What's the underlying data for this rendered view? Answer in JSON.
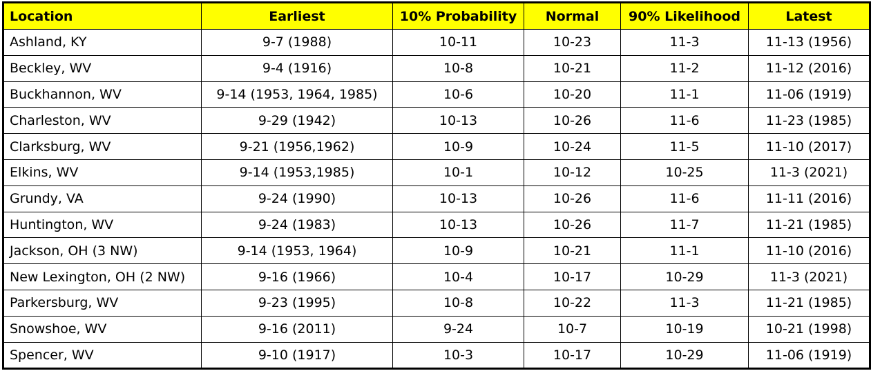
{
  "table": {
    "headers": [
      "Location",
      "Earliest",
      "10% Probability",
      "Normal",
      "90% Likelihood",
      "Latest"
    ],
    "rows": [
      [
        "Ashland, KY",
        "9-7 (1988)",
        "10-11",
        "10-23",
        "11-3",
        "11-13 (1956)"
      ],
      [
        "Beckley, WV",
        "9-4 (1916)",
        "10-8",
        "10-21",
        "11-2",
        "11-12 (2016)"
      ],
      [
        "Buckhannon, WV",
        "9-14 (1953, 1964, 1985)",
        "10-6",
        "10-20",
        "11-1",
        "11-06 (1919)"
      ],
      [
        "Charleston, WV",
        "9-29 (1942)",
        "10-13",
        "10-26",
        "11-6",
        "11-23 (1985)"
      ],
      [
        "Clarksburg, WV",
        "9-21 (1956,1962)",
        "10-9",
        "10-24",
        "11-5",
        "11-10 (2017)"
      ],
      [
        "Elkins, WV",
        "9-14 (1953,1985)",
        "10-1",
        "10-12",
        "10-25",
        "11-3 (2021)"
      ],
      [
        "Grundy, VA",
        "9-24 (1990)",
        "10-13",
        "10-26",
        "11-6",
        "11-11 (2016)"
      ],
      [
        "Huntington, WV",
        "9-24 (1983)",
        "10-13",
        "10-26",
        "11-7",
        "11-21 (1985)"
      ],
      [
        "Jackson, OH (3 NW)",
        "9-14 (1953, 1964)",
        "10-9",
        "10-21",
        "11-1",
        "11-10 (2016)"
      ],
      [
        "New Lexington, OH (2 NW)",
        "9-16 (1966)",
        "10-4",
        "10-17",
        "10-29",
        "11-3 (2021)"
      ],
      [
        "Parkersburg, WV",
        "9-23 (1995)",
        "10-8",
        "10-22",
        "11-3",
        "11-21 (1985)"
      ],
      [
        "Snowshoe, WV",
        "9-16 (2011)",
        "9-24",
        "10-7",
        "10-19",
        "10-21 (1998)"
      ],
      [
        "Spencer, WV",
        "9-10 (1917)",
        "10-3",
        "10-17",
        "10-29",
        "11-06 (1919)"
      ]
    ]
  },
  "colors": {
    "header_background": "#ffff00",
    "border": "#000000",
    "text": "#000000"
  }
}
